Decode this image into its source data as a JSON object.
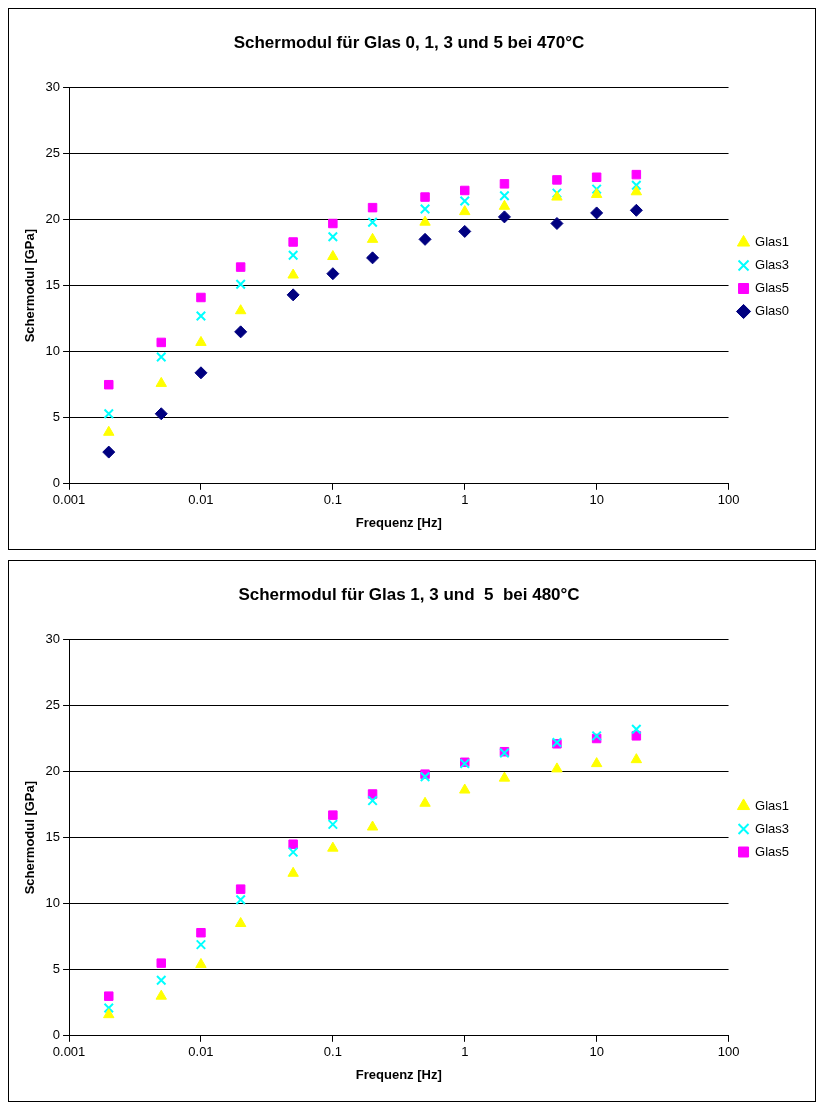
{
  "chart_data": [
    {
      "type": "scatter",
      "title": "Schermodul für Glas 0, 1, 3 und 5 bei 470°C",
      "xlabel": "Frequenz [Hz]",
      "ylabel": "Schermodul [GPa]",
      "log": "x",
      "grid": "y",
      "legend": "right",
      "x": [
        0.002,
        0.005,
        0.01,
        0.02,
        0.05,
        0.1,
        0.2,
        0.5,
        1,
        2,
        5,
        10,
        20
      ],
      "xlim": [
        0.001,
        100
      ],
      "xticks": [
        0.001,
        0.01,
        0.1,
        1,
        10,
        100
      ],
      "ylim": [
        0,
        30
      ],
      "yticks": [
        0,
        5,
        10,
        15,
        20,
        25,
        30
      ],
      "series": [
        {
          "name": "Glas1",
          "color": "#ffff00",
          "marker": "triangle",
          "values": [
            3.9,
            7.6,
            10.7,
            13.1,
            15.8,
            17.2,
            18.5,
            19.8,
            20.6,
            21.0,
            21.7,
            21.9,
            22.1
          ]
        },
        {
          "name": "Glas3",
          "color": "#00ffff",
          "marker": "cross",
          "values": [
            5.3,
            9.6,
            12.7,
            15.1,
            17.3,
            18.7,
            19.8,
            20.8,
            21.4,
            21.8,
            22.0,
            22.3,
            22.6
          ]
        },
        {
          "name": "Glas5",
          "color": "#ff00ff",
          "marker": "square",
          "values": [
            7.5,
            10.7,
            14.1,
            16.4,
            18.3,
            19.7,
            20.9,
            21.7,
            22.2,
            22.7,
            23.0,
            23.2,
            23.4
          ]
        },
        {
          "name": "Glas0",
          "color": "#000080",
          "marker": "diamond",
          "values": [
            2.4,
            5.3,
            8.4,
            11.5,
            14.3,
            15.9,
            17.1,
            18.5,
            19.1,
            20.2,
            19.7,
            20.5,
            20.7
          ]
        }
      ]
    },
    {
      "type": "scatter",
      "title": "Schermodul für Glas 1, 3 und  5  bei 480°C",
      "xlabel": "Frequenz [Hz]",
      "ylabel": "Schermodul [GPa]",
      "log": "x",
      "grid": "y",
      "legend": "right",
      "x": [
        0.002,
        0.005,
        0.01,
        0.02,
        0.05,
        0.1,
        0.2,
        0.5,
        1,
        2,
        5,
        10,
        20
      ],
      "xlim": [
        0.001,
        100
      ],
      "xticks": [
        0.001,
        0.01,
        0.1,
        1,
        10,
        100
      ],
      "ylim": [
        0,
        30
      ],
      "yticks": [
        0,
        5,
        10,
        15,
        20,
        25,
        30
      ],
      "series": [
        {
          "name": "Glas1",
          "color": "#ffff00",
          "marker": "triangle",
          "values": [
            1.6,
            3.0,
            5.4,
            8.5,
            12.3,
            14.2,
            15.8,
            17.6,
            18.6,
            19.5,
            20.2,
            20.6,
            20.9
          ]
        },
        {
          "name": "Glas3",
          "color": "#00ffff",
          "marker": "cross",
          "values": [
            2.1,
            4.2,
            6.9,
            10.3,
            13.9,
            16.0,
            17.8,
            19.6,
            20.6,
            21.4,
            22.2,
            22.7,
            23.2
          ]
        },
        {
          "name": "Glas5",
          "color": "#ff00ff",
          "marker": "square",
          "values": [
            3.0,
            5.5,
            7.8,
            11.1,
            14.5,
            16.7,
            18.3,
            19.8,
            20.7,
            21.5,
            22.1,
            22.5,
            22.7
          ]
        }
      ]
    }
  ]
}
